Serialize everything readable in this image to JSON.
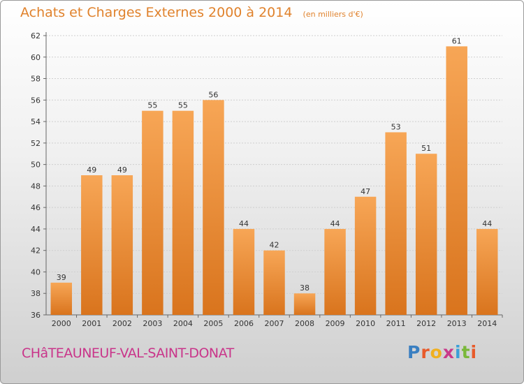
{
  "chart_data": {
    "type": "bar",
    "title": "Achats et Charges Externes 2000 à 2014",
    "subtitle": "(en milliers d'€)",
    "categories": [
      "2000",
      "2001",
      "2002",
      "2003",
      "2004",
      "2005",
      "2006",
      "2007",
      "2008",
      "2009",
      "2010",
      "2011",
      "2012",
      "2013",
      "2014"
    ],
    "values": [
      39,
      49,
      49,
      55,
      55,
      56,
      44,
      42,
      38,
      44,
      47,
      53,
      51,
      61,
      44
    ],
    "ylim": [
      36,
      62
    ],
    "yticks": [
      36,
      38,
      40,
      42,
      44,
      46,
      48,
      50,
      52,
      54,
      56,
      58,
      60,
      62
    ],
    "xlabel": "",
    "ylabel": "",
    "bar_color_top": "#f7a656",
    "bar_color_bottom": "#d9741d"
  },
  "footer": {
    "town": "CHâTEAUNEUF-VAL-SAINT-DONAT",
    "logo_letters": [
      "P",
      "r",
      "o",
      "x",
      "i",
      "t",
      "i"
    ],
    "logo_colors": [
      "#3a7fc1",
      "#e85a2a",
      "#f0b020",
      "#c93a8a",
      "#3aa0d8",
      "#7ab83a",
      "#e85a2a"
    ]
  }
}
